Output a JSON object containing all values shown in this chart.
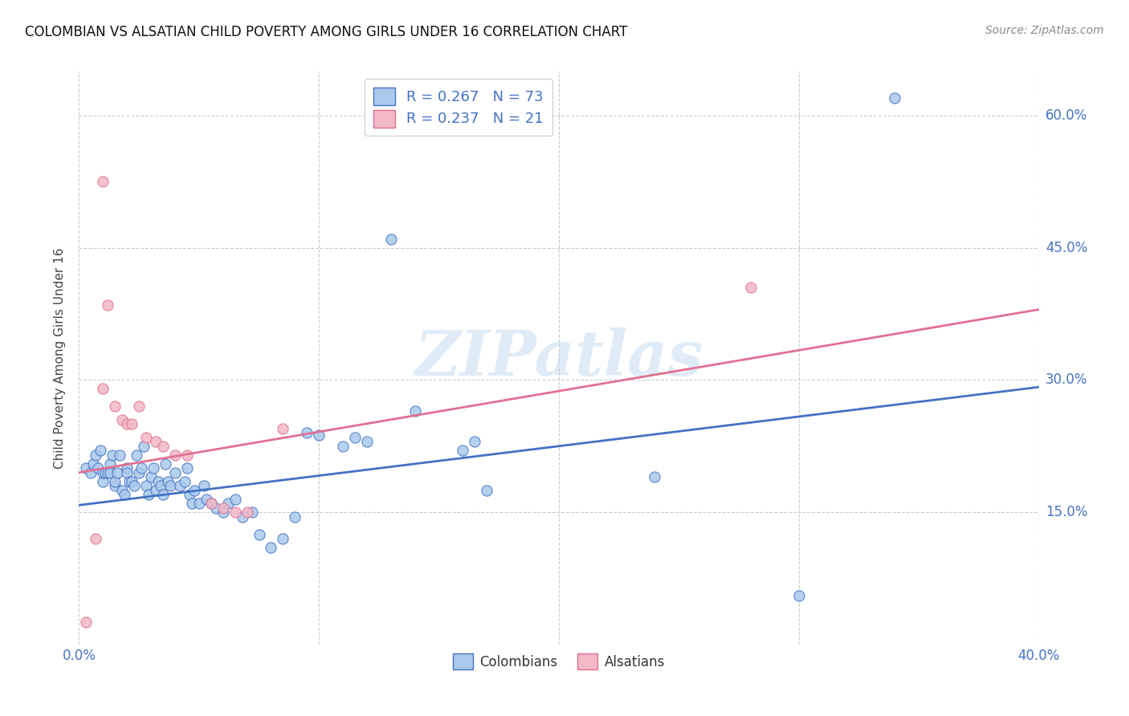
{
  "title": "COLOMBIAN VS ALSATIAN CHILD POVERTY AMONG GIRLS UNDER 16 CORRELATION CHART",
  "source": "Source: ZipAtlas.com",
  "ylabel": "Child Poverty Among Girls Under 16",
  "xlim": [
    0.0,
    0.4
  ],
  "ylim": [
    0.0,
    0.65
  ],
  "yticks": [
    0.15,
    0.3,
    0.45,
    0.6
  ],
  "ytick_labels": [
    "15.0%",
    "30.0%",
    "45.0%",
    "60.0%"
  ],
  "xticks": [
    0.0,
    0.1,
    0.2,
    0.3,
    0.4
  ],
  "xtick_labels": [
    "0.0%",
    "",
    "",
    "",
    "40.0%"
  ],
  "blue_color": "#AAC9EC",
  "pink_color": "#F2B8C6",
  "blue_edge_color": "#4472C4",
  "pink_edge_color": "#E07090",
  "blue_line_color": "#4472C4",
  "pink_line_color": "#E07090",
  "axis_color": "#4472C4",
  "watermark": "ZIPatlas",
  "colombians_label": "Colombians",
  "alsatians_label": "Alsatians",
  "legend_line1": "R = 0.267   N = 73",
  "legend_line2": "R = 0.237   N = 21",
  "blue_scatter_x": [
    0.003,
    0.005,
    0.006,
    0.007,
    0.008,
    0.009,
    0.01,
    0.01,
    0.011,
    0.012,
    0.013,
    0.013,
    0.014,
    0.015,
    0.015,
    0.016,
    0.017,
    0.018,
    0.019,
    0.02,
    0.02,
    0.021,
    0.022,
    0.023,
    0.024,
    0.025,
    0.026,
    0.027,
    0.028,
    0.029,
    0.03,
    0.031,
    0.032,
    0.033,
    0.034,
    0.035,
    0.036,
    0.037,
    0.038,
    0.04,
    0.042,
    0.044,
    0.045,
    0.046,
    0.047,
    0.048,
    0.05,
    0.052,
    0.053,
    0.055,
    0.057,
    0.06,
    0.062,
    0.065,
    0.068,
    0.072,
    0.075,
    0.08,
    0.085,
    0.09,
    0.095,
    0.1,
    0.11,
    0.115,
    0.12,
    0.13,
    0.14,
    0.16,
    0.165,
    0.17,
    0.24,
    0.3,
    0.34
  ],
  "blue_scatter_y": [
    0.2,
    0.195,
    0.205,
    0.215,
    0.2,
    0.22,
    0.185,
    0.195,
    0.195,
    0.195,
    0.205,
    0.195,
    0.215,
    0.18,
    0.185,
    0.195,
    0.215,
    0.175,
    0.17,
    0.2,
    0.195,
    0.185,
    0.185,
    0.18,
    0.215,
    0.195,
    0.2,
    0.225,
    0.18,
    0.17,
    0.19,
    0.2,
    0.175,
    0.185,
    0.18,
    0.17,
    0.205,
    0.185,
    0.18,
    0.195,
    0.18,
    0.185,
    0.2,
    0.17,
    0.16,
    0.175,
    0.16,
    0.18,
    0.165,
    0.16,
    0.155,
    0.15,
    0.16,
    0.165,
    0.145,
    0.15,
    0.125,
    0.11,
    0.12,
    0.145,
    0.24,
    0.238,
    0.225,
    0.235,
    0.23,
    0.46,
    0.265,
    0.22,
    0.23,
    0.175,
    0.19,
    0.055,
    0.62
  ],
  "pink_scatter_x": [
    0.003,
    0.007,
    0.01,
    0.012,
    0.015,
    0.018,
    0.02,
    0.022,
    0.025,
    0.028,
    0.032,
    0.035,
    0.04,
    0.045,
    0.055,
    0.06,
    0.065,
    0.07,
    0.085,
    0.28,
    0.01
  ],
  "pink_scatter_y": [
    0.025,
    0.12,
    0.29,
    0.385,
    0.27,
    0.255,
    0.25,
    0.25,
    0.27,
    0.235,
    0.23,
    0.225,
    0.215,
    0.215,
    0.16,
    0.155,
    0.15,
    0.15,
    0.245,
    0.405,
    0.525
  ],
  "blue_trend_x": [
    0.0,
    0.4
  ],
  "blue_trend_y": [
    0.158,
    0.292
  ],
  "pink_trend_x": [
    0.0,
    0.4
  ],
  "pink_trend_y": [
    0.195,
    0.38
  ]
}
